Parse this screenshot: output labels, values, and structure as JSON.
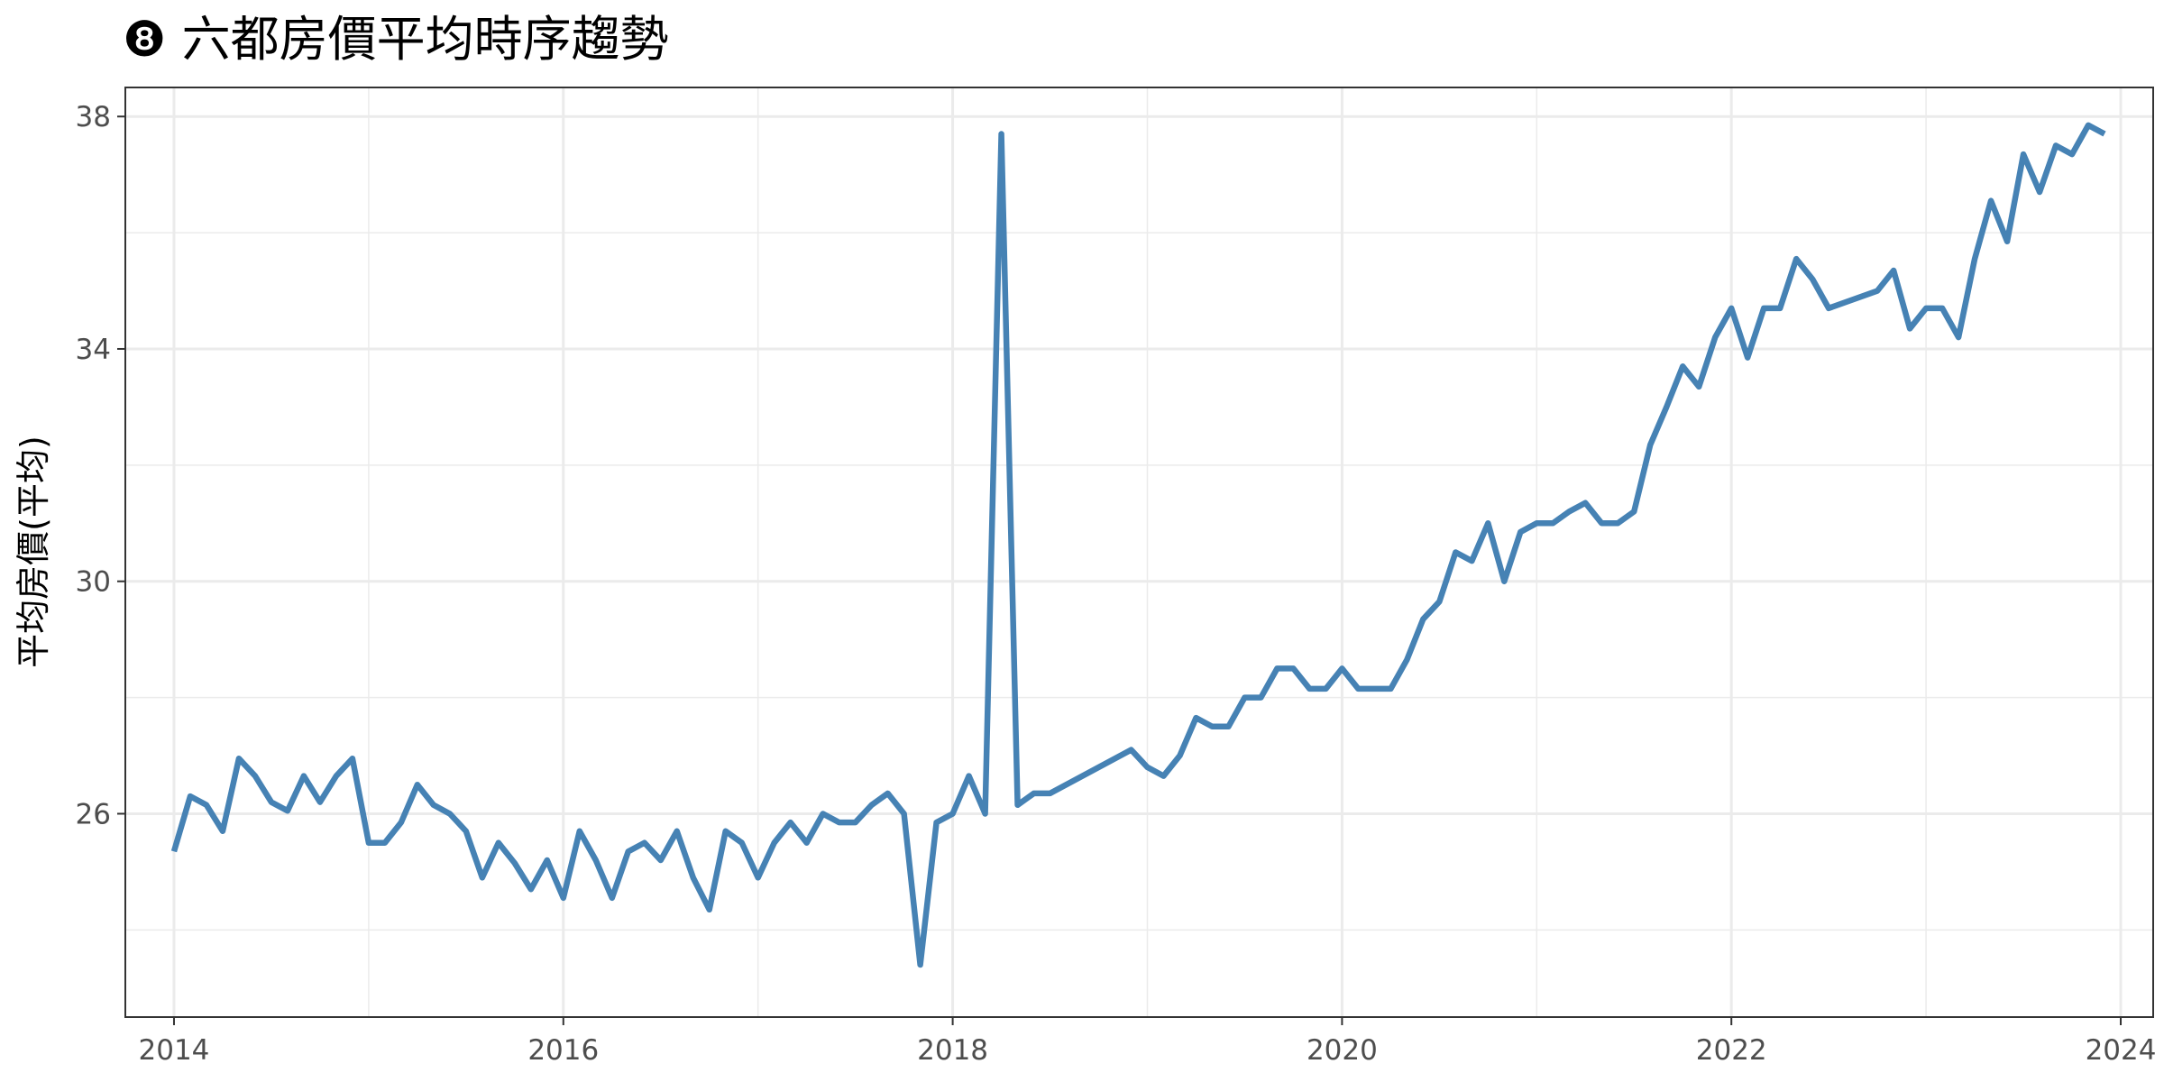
{
  "chart_data": {
    "type": "line",
    "title": "❽ 六都房價平均時序趨勢",
    "xlabel": "",
    "ylabel": "平均房價(平均)",
    "x_ticks": [
      "2014",
      "2016",
      "2018",
      "2020",
      "2022",
      "2024"
    ],
    "y_ticks": [
      "26",
      "30",
      "34",
      "38"
    ],
    "xlim": [
      "2013-10",
      "2024-03"
    ],
    "ylim": [
      22.5,
      38.5
    ],
    "grid": true,
    "legend": "none",
    "series": [
      {
        "color": "#4682b4",
        "x": [
          "2014-01",
          "2014-02",
          "2014-03",
          "2014-04",
          "2014-05",
          "2014-06",
          "2014-07",
          "2014-08",
          "2014-09",
          "2014-10",
          "2014-11",
          "2014-12",
          "2015-01",
          "2015-02",
          "2015-03",
          "2015-04",
          "2015-05",
          "2015-06",
          "2015-07",
          "2015-08",
          "2015-09",
          "2015-10",
          "2015-11",
          "2015-12",
          "2016-01",
          "2016-02",
          "2016-03",
          "2016-04",
          "2016-05",
          "2016-06",
          "2016-07",
          "2016-08",
          "2016-09",
          "2016-10",
          "2016-11",
          "2016-12",
          "2017-01",
          "2017-02",
          "2017-03",
          "2017-04",
          "2017-05",
          "2017-06",
          "2017-07",
          "2017-08",
          "2017-09",
          "2017-10",
          "2017-11",
          "2017-12",
          "2018-01",
          "2018-02",
          "2018-03",
          "2018-04",
          "2018-05",
          "2018-06",
          "2018-07",
          "2018-12",
          "2019-01",
          "2019-02",
          "2019-03",
          "2019-04",
          "2019-05",
          "2019-06",
          "2019-07",
          "2019-08",
          "2019-09",
          "2019-10",
          "2019-11",
          "2019-12",
          "2020-01",
          "2020-02",
          "2020-03",
          "2020-04",
          "2020-05",
          "2020-06",
          "2020-07",
          "2020-08",
          "2020-09",
          "2020-10",
          "2020-11",
          "2020-12",
          "2021-01",
          "2021-02",
          "2021-03",
          "2021-04",
          "2021-05",
          "2021-06",
          "2021-07",
          "2021-08",
          "2021-09",
          "2021-10",
          "2021-11",
          "2021-12",
          "2022-01",
          "2022-02",
          "2022-03",
          "2022-04",
          "2022-05",
          "2022-06",
          "2022-07",
          "2022-10",
          "2022-11",
          "2022-12",
          "2023-01",
          "2023-02",
          "2023-03",
          "2023-04",
          "2023-05",
          "2023-06",
          "2023-07",
          "2023-08",
          "2023-09",
          "2023-10",
          "2023-11",
          "2023-12"
        ],
        "y": [
          25.35,
          26.3,
          26.15,
          25.7,
          26.95,
          26.65,
          26.2,
          26.05,
          26.65,
          26.2,
          26.65,
          26.95,
          25.5,
          25.5,
          25.85,
          26.5,
          26.15,
          26.0,
          25.7,
          24.9,
          25.5,
          25.15,
          24.7,
          25.2,
          24.55,
          25.7,
          25.2,
          24.55,
          25.35,
          25.5,
          25.2,
          25.7,
          24.9,
          24.35,
          25.7,
          25.5,
          24.9,
          25.5,
          25.85,
          25.5,
          26.0,
          25.85,
          25.85,
          26.15,
          26.35,
          26.0,
          23.4,
          25.85,
          26.0,
          26.65,
          26.0,
          37.7,
          26.15,
          26.35,
          26.35,
          27.1,
          26.8,
          26.65,
          27.0,
          27.65,
          27.5,
          27.5,
          28.0,
          28.0,
          28.5,
          28.5,
          28.15,
          28.15,
          28.5,
          28.15,
          28.15,
          28.15,
          28.65,
          29.35,
          29.65,
          30.5,
          30.35,
          31.0,
          30.0,
          30.85,
          31.0,
          31.0,
          31.2,
          31.35,
          31.0,
          31.0,
          31.2,
          32.35,
          33.0,
          33.7,
          33.35,
          34.2,
          34.7,
          33.85,
          34.7,
          34.7,
          35.55,
          35.2,
          34.7,
          35.0,
          35.35,
          34.35,
          34.7,
          34.7,
          34.2,
          35.55,
          36.55,
          35.85,
          37.35,
          36.7,
          37.5,
          37.35,
          37.85,
          37.7
        ]
      }
    ]
  }
}
